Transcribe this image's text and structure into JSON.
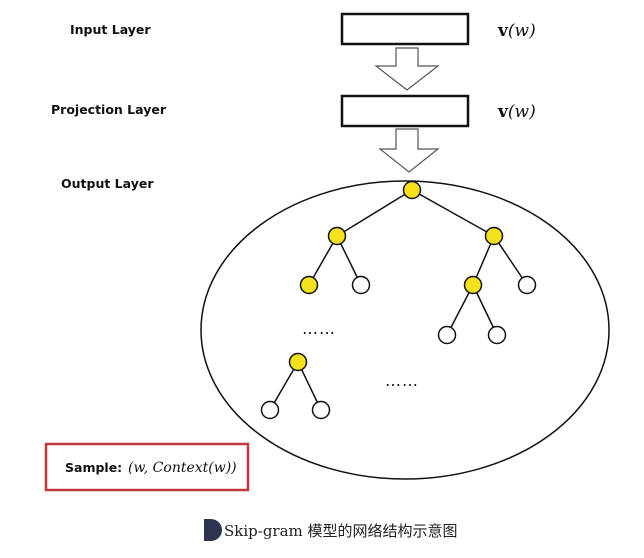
{
  "layers": {
    "input_label": "Input Layer",
    "projection_label": "Projection Layer",
    "output_label": "Output Layer"
  },
  "vectors": {
    "input_vector_bold": "v",
    "input_vector_rest": "(w)",
    "projection_vector_bold": "v",
    "projection_vector_rest": "(w)"
  },
  "tree": {
    "ellipsis_left": "……",
    "ellipsis_right": "……"
  },
  "sample": {
    "label": "Sample:",
    "value": "(w, Context(w))"
  },
  "caption": "Skip-gram 模型的网络结构示意图",
  "colors": {
    "internal_node": "#f5e21c",
    "leaf_node": "#ffffff",
    "sample_border": "#c0363a",
    "caption_marker": "#2e3350"
  }
}
